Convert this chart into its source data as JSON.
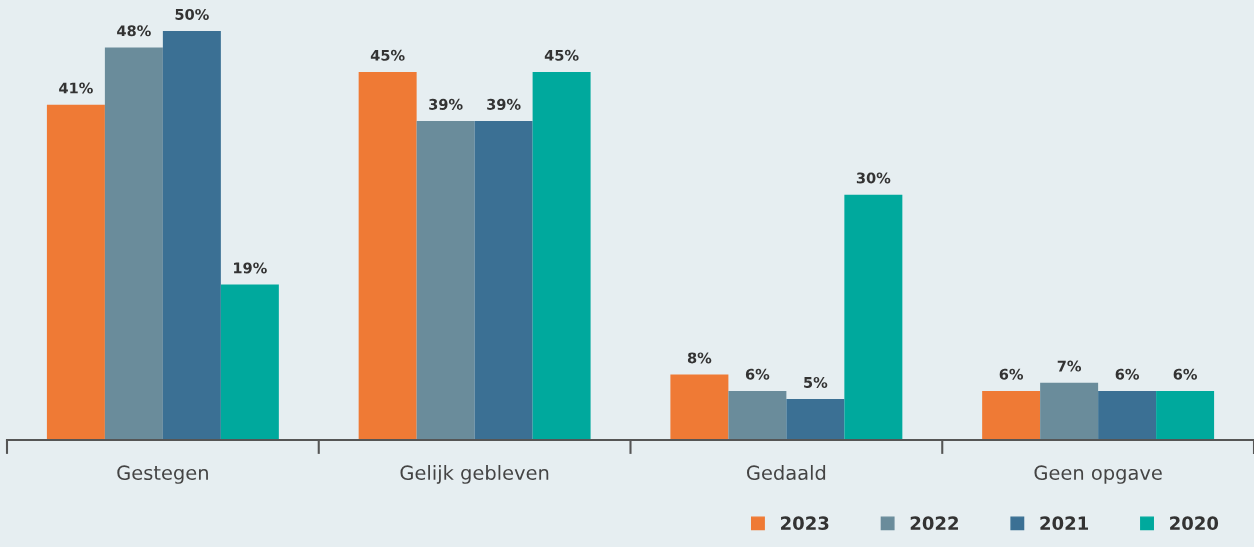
{
  "chart_data": {
    "type": "bar",
    "categories": [
      "Gestegen",
      "Gelijk gebleven",
      "Gedaald",
      "Geen opgave"
    ],
    "series": [
      {
        "name": "2023",
        "color": "#ef7a35",
        "values": [
          41,
          45,
          8,
          6
        ],
        "value_labels": [
          "41%",
          "45%",
          "8%",
          "6%"
        ]
      },
      {
        "name": "2022",
        "color": "#6a8c9b",
        "values": [
          48,
          39,
          6,
          7
        ],
        "value_labels": [
          "48%",
          "39%",
          "6%",
          "7%"
        ]
      },
      {
        "name": "2021",
        "color": "#3b7094",
        "values": [
          50,
          39,
          5,
          6
        ],
        "value_labels": [
          "50%",
          "39%",
          "5%",
          "6%"
        ]
      },
      {
        "name": "2020",
        "color": "#00a99d",
        "values": [
          19,
          45,
          30,
          6
        ],
        "value_labels": [
          "19%",
          "45%",
          "30%",
          "6%"
        ]
      }
    ],
    "legend": "bottom right",
    "grid": false
  }
}
